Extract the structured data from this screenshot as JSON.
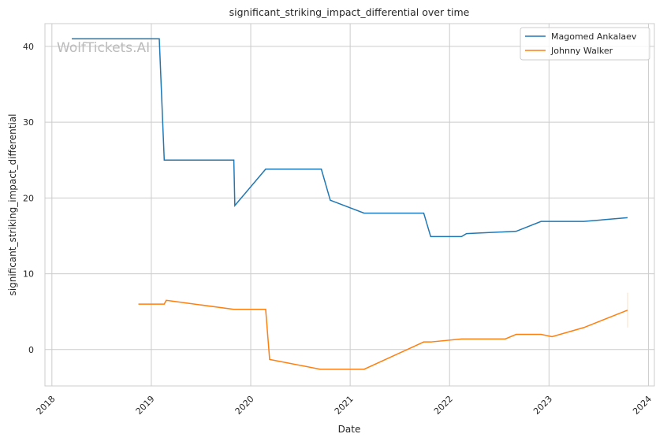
{
  "chart_data": {
    "type": "line",
    "title": "significant_striking_impact_differential over time",
    "xlabel": "Date",
    "ylabel": "significant_striking_impact_differential",
    "xlim": [
      2017.93,
      2024.06
    ],
    "ylim": [
      -4.8,
      43
    ],
    "xticks": [
      2018,
      2019,
      2020,
      2021,
      2022,
      2023,
      2024
    ],
    "xtick_labels": [
      "2018",
      "2019",
      "2020",
      "2021",
      "2022",
      "2023",
      "2024"
    ],
    "yticks": [
      0,
      10,
      20,
      30,
      40
    ],
    "ytick_labels": [
      "0",
      "10",
      "20",
      "30",
      "40"
    ],
    "grid": true,
    "legend_position": "top-right",
    "watermark": "WolfTickets.AI",
    "series": [
      {
        "name": "Magomed Ankalaev",
        "color": "#1f77b4",
        "x": [
          2018.2,
          2019.08,
          2019.13,
          2019.83,
          2019.84,
          2020.15,
          2020.71,
          2020.8,
          2021.14,
          2021.74,
          2021.81,
          2022.12,
          2022.17,
          2022.67,
          2022.92,
          2023.35,
          2023.79
        ],
        "y": [
          41,
          41,
          25,
          25,
          19,
          23.8,
          23.8,
          19.7,
          18,
          18,
          14.9,
          14.9,
          15.3,
          15.6,
          16.9,
          16.9,
          17.4
        ]
      },
      {
        "name": "Johnny Walker",
        "color": "#ff7f0e",
        "x": [
          2018.87,
          2019.13,
          2019.15,
          2019.83,
          2020.15,
          2020.19,
          2020.7,
          2021.14,
          2021.74,
          2021.81,
          2022.12,
          2022.56,
          2022.67,
          2022.92,
          2023.03,
          2023.35,
          2023.79
        ],
        "y": [
          6,
          6,
          6.5,
          5.3,
          5.3,
          -1.3,
          -2.6,
          -2.6,
          1.0,
          1.0,
          1.4,
          1.4,
          2.0,
          2.0,
          1.7,
          2.9,
          5.2
        ],
        "error_band_last": [
          2.9,
          7.5
        ]
      }
    ]
  }
}
